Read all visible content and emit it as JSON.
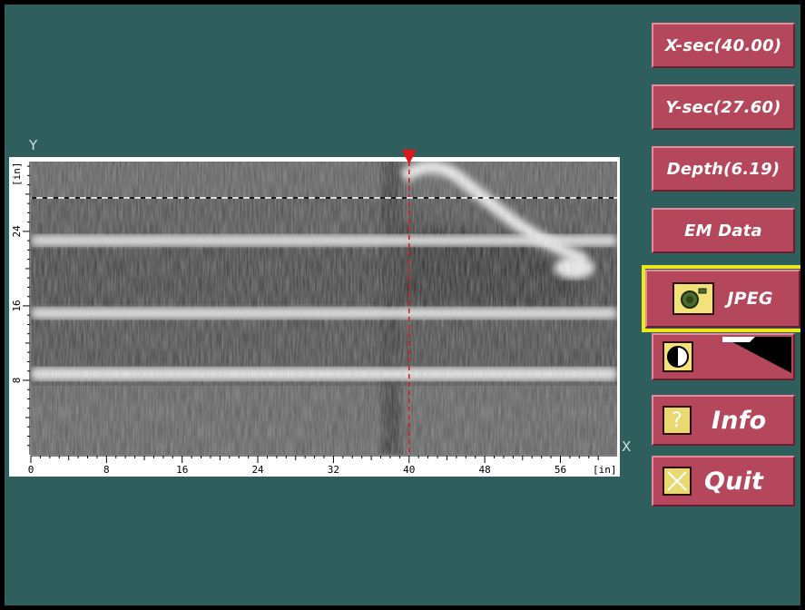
{
  "plot": {
    "axis_y_letter": "Y",
    "axis_x_letter": "X",
    "unit_x": "[in]",
    "unit_y": "[in]",
    "x_ticks": [
      "0",
      "8",
      "16",
      "24",
      "32",
      "40",
      "48",
      "56"
    ],
    "y_ticks": [
      "8",
      "16",
      "24"
    ],
    "x_range": [
      0,
      62
    ],
    "y_range": [
      0,
      31.5
    ],
    "cursor_x": 40,
    "cursor_y": 27.6
  },
  "buttons": {
    "xsec": "X-sec(40.00)",
    "ysec": "Y-sec(27.60)",
    "depth": "Depth(6.19)",
    "emdata": "EM Data",
    "jpeg": "JPEG",
    "info": "Info",
    "quit": "Quit"
  },
  "icons": {
    "jpeg": "camera-icon",
    "contrast": "contrast-icon",
    "gradient": "gradient-ramp-icon",
    "info": "question-icon",
    "quit": "close-icon"
  },
  "colors": {
    "background": "#2f5f5c",
    "button": "#b5475c",
    "highlight": "#e9e81a",
    "cursor": "#e0161a"
  }
}
